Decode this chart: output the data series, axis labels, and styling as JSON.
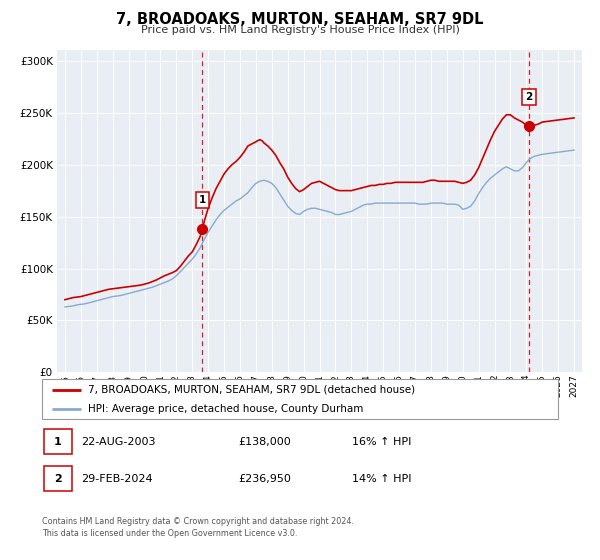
{
  "title": "7, BROADOAKS, MURTON, SEAHAM, SR7 9DL",
  "subtitle": "Price paid vs. HM Land Registry's House Price Index (HPI)",
  "line1_label": "7, BROADOAKS, MURTON, SEAHAM, SR7 9DL (detached house)",
  "line2_label": "HPI: Average price, detached house, County Durham",
  "line1_color": "#cc0000",
  "line2_color": "#88aacc",
  "plot_bg_color": "#e8eef4",
  "grid_color": "#ffffff",
  "ylim": [
    0,
    310000
  ],
  "yticks": [
    0,
    50000,
    100000,
    150000,
    200000,
    250000,
    300000
  ],
  "xlim_start": 1994.5,
  "xlim_end": 2027.5,
  "marker1_x": 2003.64,
  "marker1_y": 138000,
  "marker1_label": "1",
  "marker2_x": 2024.17,
  "marker2_y": 236950,
  "marker2_label": "2",
  "sale1_date": "22-AUG-2003",
  "sale1_price": "£138,000",
  "sale1_hpi": "16% ↑ HPI",
  "sale2_date": "29-FEB-2024",
  "sale2_price": "£236,950",
  "sale2_hpi": "14% ↑ HPI",
  "footer1": "Contains HM Land Registry data © Crown copyright and database right 2024.",
  "footer2": "This data is licensed under the Open Government Licence v3.0.",
  "hpi_line": {
    "years": [
      1995.0,
      1995.25,
      1995.5,
      1995.75,
      1996.0,
      1996.25,
      1996.5,
      1996.75,
      1997.0,
      1997.25,
      1997.5,
      1997.75,
      1998.0,
      1998.25,
      1998.5,
      1998.75,
      1999.0,
      1999.25,
      1999.5,
      1999.75,
      2000.0,
      2000.25,
      2000.5,
      2000.75,
      2001.0,
      2001.25,
      2001.5,
      2001.75,
      2002.0,
      2002.25,
      2002.5,
      2002.75,
      2003.0,
      2003.25,
      2003.5,
      2003.75,
      2004.0,
      2004.25,
      2004.5,
      2004.75,
      2005.0,
      2005.25,
      2005.5,
      2005.75,
      2006.0,
      2006.25,
      2006.5,
      2006.75,
      2007.0,
      2007.25,
      2007.5,
      2007.75,
      2008.0,
      2008.25,
      2008.5,
      2008.75,
      2009.0,
      2009.25,
      2009.5,
      2009.75,
      2010.0,
      2010.25,
      2010.5,
      2010.75,
      2011.0,
      2011.25,
      2011.5,
      2011.75,
      2012.0,
      2012.25,
      2012.5,
      2012.75,
      2013.0,
      2013.25,
      2013.5,
      2013.75,
      2014.0,
      2014.25,
      2014.5,
      2014.75,
      2015.0,
      2015.25,
      2015.5,
      2015.75,
      2016.0,
      2016.25,
      2016.5,
      2016.75,
      2017.0,
      2017.25,
      2017.5,
      2017.75,
      2018.0,
      2018.25,
      2018.5,
      2018.75,
      2019.0,
      2019.25,
      2019.5,
      2019.75,
      2020.0,
      2020.25,
      2020.5,
      2020.75,
      2021.0,
      2021.25,
      2021.5,
      2021.75,
      2022.0,
      2022.25,
      2022.5,
      2022.75,
      2023.0,
      2023.25,
      2023.5,
      2023.75,
      2024.0,
      2024.25,
      2024.5,
      2024.75,
      2025.0,
      2025.5,
      2026.0,
      2026.5,
      2027.0
    ],
    "values": [
      63000,
      63500,
      64000,
      65000,
      65500,
      66000,
      67000,
      68000,
      69000,
      70000,
      71000,
      72000,
      73000,
      73500,
      74000,
      75000,
      76000,
      77000,
      78000,
      79000,
      80000,
      81000,
      82000,
      83500,
      85000,
      86500,
      88000,
      90000,
      93000,
      97000,
      101000,
      105000,
      109000,
      114000,
      120000,
      128000,
      135000,
      141000,
      147000,
      152000,
      156000,
      159000,
      162000,
      165000,
      167000,
      170000,
      173000,
      178000,
      182000,
      184000,
      185000,
      184000,
      182000,
      178000,
      172000,
      166000,
      160000,
      156000,
      153000,
      152000,
      155000,
      157000,
      158000,
      158000,
      157000,
      156000,
      155000,
      154000,
      152000,
      152000,
      153000,
      154000,
      155000,
      157000,
      159000,
      161000,
      162000,
      162000,
      163000,
      163000,
      163000,
      163000,
      163000,
      163000,
      163000,
      163000,
      163000,
      163000,
      163000,
      162000,
      162000,
      162000,
      163000,
      163000,
      163000,
      163000,
      162000,
      162000,
      162000,
      161000,
      157000,
      158000,
      160000,
      165000,
      172000,
      178000,
      183000,
      187000,
      190000,
      193000,
      196000,
      198000,
      196000,
      194000,
      194000,
      197000,
      202000,
      206000,
      208000,
      209000,
      210000,
      211000,
      212000,
      213000,
      214000
    ]
  },
  "price_line": {
    "years": [
      1995.0,
      1995.25,
      1995.5,
      1995.75,
      1996.0,
      1996.25,
      1996.5,
      1996.75,
      1997.0,
      1997.25,
      1997.5,
      1997.75,
      1998.0,
      1998.25,
      1998.5,
      1998.75,
      1999.0,
      1999.25,
      1999.5,
      1999.75,
      2000.0,
      2000.25,
      2000.5,
      2000.75,
      2001.0,
      2001.25,
      2001.5,
      2001.75,
      2002.0,
      2002.25,
      2002.5,
      2002.75,
      2003.0,
      2003.25,
      2003.5,
      2003.64,
      2003.75,
      2004.0,
      2004.25,
      2004.5,
      2004.75,
      2005.0,
      2005.25,
      2005.5,
      2005.75,
      2006.0,
      2006.25,
      2006.5,
      2006.75,
      2007.0,
      2007.1,
      2007.25,
      2007.4,
      2007.5,
      2007.75,
      2008.0,
      2008.25,
      2008.5,
      2008.75,
      2009.0,
      2009.25,
      2009.5,
      2009.75,
      2010.0,
      2010.25,
      2010.5,
      2010.75,
      2011.0,
      2011.25,
      2011.5,
      2011.75,
      2012.0,
      2012.25,
      2012.5,
      2012.75,
      2013.0,
      2013.25,
      2013.5,
      2013.75,
      2014.0,
      2014.25,
      2014.5,
      2014.75,
      2015.0,
      2015.25,
      2015.5,
      2015.75,
      2016.0,
      2016.25,
      2016.5,
      2016.75,
      2017.0,
      2017.25,
      2017.5,
      2017.75,
      2018.0,
      2018.25,
      2018.5,
      2018.75,
      2019.0,
      2019.25,
      2019.5,
      2019.75,
      2020.0,
      2020.25,
      2020.5,
      2020.75,
      2021.0,
      2021.25,
      2021.5,
      2021.75,
      2022.0,
      2022.25,
      2022.5,
      2022.75,
      2023.0,
      2023.25,
      2023.5,
      2023.75,
      2024.0,
      2024.17,
      2024.5,
      2024.75,
      2025.0,
      2025.5,
      2026.0,
      2026.5,
      2027.0
    ],
    "values": [
      70000,
      71000,
      72000,
      72500,
      73000,
      74000,
      75000,
      76000,
      77000,
      78000,
      79000,
      80000,
      80500,
      81000,
      81500,
      82000,
      82500,
      83000,
      83500,
      84000,
      85000,
      86000,
      87500,
      89000,
      91000,
      93000,
      94500,
      96000,
      98000,
      102000,
      107000,
      112000,
      116000,
      123000,
      131000,
      138000,
      145000,
      158000,
      168000,
      177000,
      184000,
      191000,
      196000,
      200000,
      203000,
      207000,
      212000,
      218000,
      220000,
      222000,
      223000,
      224000,
      223000,
      221000,
      218000,
      214000,
      209000,
      202000,
      196000,
      188000,
      182000,
      177000,
      174000,
      176000,
      179000,
      182000,
      183000,
      184000,
      182000,
      180000,
      178000,
      176000,
      175000,
      175000,
      175000,
      175000,
      176000,
      177000,
      178000,
      179000,
      180000,
      180000,
      181000,
      181000,
      182000,
      182000,
      183000,
      183000,
      183000,
      183000,
      183000,
      183000,
      183000,
      183000,
      184000,
      185000,
      185000,
      184000,
      184000,
      184000,
      184000,
      184000,
      183000,
      182000,
      183000,
      185000,
      190000,
      197000,
      206000,
      215000,
      224000,
      232000,
      238000,
      244000,
      248000,
      248000,
      245000,
      243000,
      241000,
      238000,
      236950,
      238000,
      239000,
      241000,
      242000,
      243000,
      244000,
      245000
    ]
  }
}
